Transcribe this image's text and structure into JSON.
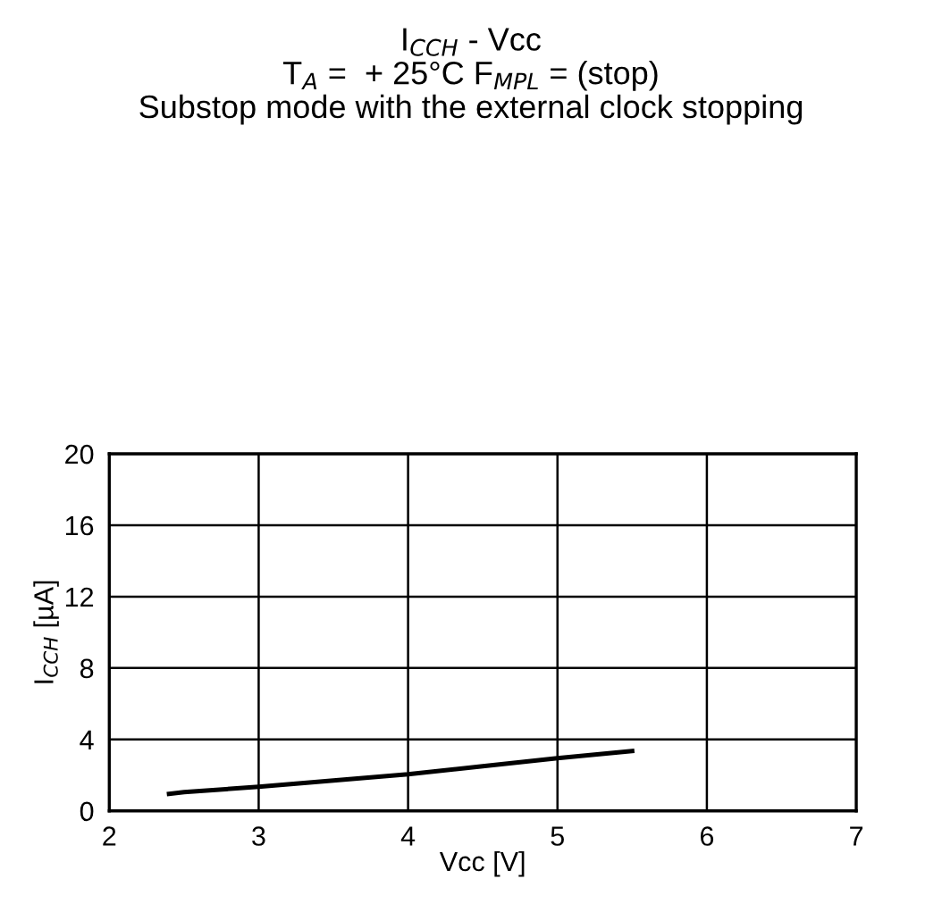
{
  "chart_data": {
    "type": "line",
    "title": "I$_{CCH}$ - Vcc\nT$_{A}$ =  + 25°C F$_{MPL}$ = (stop)\nSubstop mode with the external clock stopping",
    "xlabel": "Vcc [V]",
    "ylabel": "I$_{CCH}$ [µA]",
    "x": [
      2.4,
      2.5,
      3.0,
      3.5,
      4.0,
      4.5,
      5.0,
      5.5
    ],
    "series": [
      {
        "color": "#000000",
        "values": [
          0.95,
          1.05,
          1.35,
          1.7,
          2.05,
          2.5,
          2.95,
          3.35
        ]
      }
    ],
    "xlim": [
      2,
      7
    ],
    "ylim": [
      0,
      20
    ],
    "xticks": [
      2,
      3,
      4,
      5,
      6,
      7
    ],
    "yticks": [
      0,
      4,
      8,
      12,
      16,
      20
    ],
    "grid": true,
    "marker": "none",
    "line_style": "solid",
    "legend": false
  }
}
